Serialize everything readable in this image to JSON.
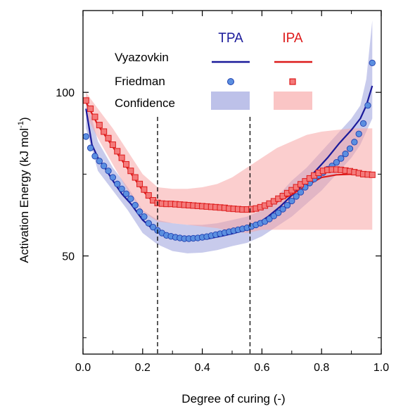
{
  "chart_data": {
    "type": "line",
    "xlabel": "Degree of curing (-)",
    "ylabel": "Activation Energy (kJ mol",
    "ylabel_sup": "-1",
    "ylabel_close": ")",
    "xlim": [
      0.0,
      1.0
    ],
    "ylim": [
      20,
      125
    ],
    "xticks": [
      0.0,
      0.2,
      0.4,
      0.6,
      0.8,
      1.0
    ],
    "xtick_labels": [
      "0.0",
      "0.2",
      "0.4",
      "0.6",
      "0.8",
      "1.0"
    ],
    "yticks": [
      50,
      100
    ],
    "ytick_labels": [
      "50",
      "100"
    ],
    "vlines": [
      0.25,
      0.56
    ],
    "legend": {
      "col_headers": [
        "TPA",
        "IPA"
      ],
      "row_labels": [
        "Vyazovkin",
        "Friedman",
        "Confidence"
      ]
    },
    "colors": {
      "tpa_line": "#1a1a9a",
      "tpa_marker": "#5b8fe0",
      "tpa_marker_edge": "#1f3fb0",
      "tpa_band": "#9aa0dd",
      "ipa_line": "#dd1a1a",
      "ipa_marker": "#f47a7a",
      "ipa_marker_edge": "#dd1a1a",
      "ipa_band": "#f7a6a6"
    },
    "series": [
      {
        "name": "TPA",
        "kind": "Vyazovkin",
        "x": [
          0.01,
          0.03,
          0.05,
          0.08,
          0.1,
          0.13,
          0.16,
          0.2,
          0.23,
          0.26,
          0.3,
          0.34,
          0.38,
          0.42,
          0.46,
          0.5,
          0.54,
          0.58,
          0.62,
          0.66,
          0.7,
          0.74,
          0.78,
          0.82,
          0.86,
          0.9,
          0.93,
          0.95,
          0.97
        ],
        "y": [
          95,
          84,
          80,
          76,
          73,
          69,
          66,
          61,
          58.5,
          57,
          55.8,
          55.2,
          55,
          55.3,
          56,
          56.8,
          57.8,
          59.5,
          62,
          65,
          68.5,
          72,
          76,
          80,
          84.5,
          88.5,
          92,
          96,
          102
        ]
      },
      {
        "name": "TPA",
        "kind": "Friedman",
        "x": [
          0.01,
          0.025,
          0.04,
          0.055,
          0.07,
          0.085,
          0.1,
          0.115,
          0.13,
          0.145,
          0.16,
          0.175,
          0.19,
          0.205,
          0.22,
          0.235,
          0.25,
          0.265,
          0.28,
          0.295,
          0.31,
          0.325,
          0.34,
          0.355,
          0.37,
          0.385,
          0.4,
          0.415,
          0.43,
          0.445,
          0.46,
          0.475,
          0.49,
          0.505,
          0.52,
          0.535,
          0.55,
          0.565,
          0.58,
          0.595,
          0.61,
          0.625,
          0.64,
          0.655,
          0.67,
          0.685,
          0.7,
          0.715,
          0.73,
          0.745,
          0.76,
          0.775,
          0.79,
          0.805,
          0.82,
          0.835,
          0.85,
          0.865,
          0.88,
          0.895,
          0.91,
          0.925,
          0.94,
          0.955,
          0.97
        ],
        "y": [
          86.5,
          83,
          80.5,
          79,
          77.5,
          76,
          74,
          72,
          70.5,
          69,
          67.5,
          65.5,
          63.5,
          62,
          60,
          58.8,
          57.8,
          57,
          56.3,
          56,
          55.7,
          55.5,
          55.3,
          55.3,
          55.4,
          55.5,
          55.7,
          55.9,
          56.2,
          56.5,
          56.8,
          57.1,
          57.4,
          57.7,
          58,
          58.3,
          58.6,
          59,
          59.5,
          60,
          60.5,
          61.3,
          62.2,
          63.2,
          64.3,
          65.5,
          66.8,
          68.2,
          69.5,
          71,
          72.3,
          73.5,
          74.6,
          75.5,
          76.5,
          77.5,
          78.6,
          79.8,
          81.2,
          82.8,
          84.8,
          87.3,
          90.5,
          96,
          109
        ]
      },
      {
        "name": "IPA",
        "kind": "Vyazovkin",
        "x": [
          0.01,
          0.03,
          0.05,
          0.08,
          0.11,
          0.14,
          0.17,
          0.2,
          0.23,
          0.25,
          0.3,
          0.35,
          0.4,
          0.45,
          0.5,
          0.55,
          0.6,
          0.65,
          0.7,
          0.75,
          0.8,
          0.85,
          0.9,
          0.95,
          0.97
        ],
        "y": [
          97,
          93.5,
          90,
          86,
          82,
          78,
          74,
          70,
          67,
          65.8,
          65.5,
          65.2,
          64.8,
          64.3,
          63.8,
          64,
          64.8,
          66.5,
          68.8,
          71.5,
          74,
          74.8,
          75,
          74.8,
          74.8
        ]
      },
      {
        "name": "IPA",
        "kind": "Friedman",
        "x": [
          0.01,
          0.025,
          0.04,
          0.055,
          0.07,
          0.085,
          0.1,
          0.115,
          0.13,
          0.145,
          0.16,
          0.175,
          0.19,
          0.205,
          0.22,
          0.235,
          0.25,
          0.265,
          0.28,
          0.295,
          0.31,
          0.325,
          0.34,
          0.355,
          0.37,
          0.385,
          0.4,
          0.415,
          0.43,
          0.445,
          0.46,
          0.475,
          0.49,
          0.505,
          0.52,
          0.535,
          0.55,
          0.565,
          0.58,
          0.595,
          0.61,
          0.625,
          0.64,
          0.655,
          0.67,
          0.685,
          0.7,
          0.715,
          0.73,
          0.745,
          0.76,
          0.775,
          0.79,
          0.805,
          0.82,
          0.835,
          0.85,
          0.865,
          0.88,
          0.895,
          0.91,
          0.925,
          0.94,
          0.955,
          0.97
        ],
        "y": [
          97.5,
          95,
          92.5,
          90,
          88,
          86,
          84,
          82,
          80,
          78,
          76,
          74,
          72,
          70.3,
          68.5,
          67,
          66.2,
          66,
          65.9,
          65.9,
          65.8,
          65.7,
          65.6,
          65.5,
          65.4,
          65.3,
          65.2,
          65.1,
          65,
          64.9,
          64.8,
          64.7,
          64.5,
          64.4,
          64.3,
          64.2,
          64.2,
          64.3,
          64.5,
          64.9,
          65.4,
          66,
          66.7,
          67.5,
          68.3,
          69.2,
          70.1,
          71,
          71.9,
          72.8,
          73.7,
          74.6,
          75.4,
          76,
          76.3,
          76.4,
          76.4,
          76.3,
          76.1,
          75.9,
          75.6,
          75.3,
          75,
          74.9,
          74.8
        ]
      }
    ],
    "bands": [
      {
        "name": "TPA",
        "x": [
          0.01,
          0.05,
          0.1,
          0.15,
          0.2,
          0.25,
          0.3,
          0.35,
          0.4,
          0.45,
          0.5,
          0.55,
          0.6,
          0.65,
          0.7,
          0.75,
          0.8,
          0.85,
          0.9,
          0.93,
          0.95,
          0.97
        ],
        "lower": [
          89,
          76,
          70,
          64,
          57,
          53.5,
          51.5,
          50.8,
          51,
          51.8,
          53,
          54,
          56,
          59,
          62,
          66,
          70,
          75,
          80,
          84,
          88,
          92
        ],
        "upper": [
          99,
          85,
          77,
          71,
          64,
          61,
          60,
          59.5,
          59.5,
          60,
          61,
          62,
          64,
          68,
          73,
          77,
          82,
          87,
          92,
          96,
          104,
          122
        ]
      },
      {
        "name": "IPA",
        "x": [
          0.01,
          0.05,
          0.1,
          0.15,
          0.2,
          0.25,
          0.3,
          0.35,
          0.4,
          0.45,
          0.5,
          0.55,
          0.6,
          0.65,
          0.7,
          0.75,
          0.8,
          0.85,
          0.9,
          0.95,
          0.97
        ],
        "lower": [
          93,
          86,
          78,
          70,
          63.5,
          60.5,
          60,
          59.5,
          59,
          58.5,
          57.5,
          57,
          58,
          58,
          58,
          58,
          58,
          58,
          58,
          58,
          58
        ],
        "upper": [
          100,
          95,
          89,
          82,
          75,
          71,
          70.5,
          70.5,
          71,
          72,
          74,
          77,
          80,
          83,
          85,
          87,
          88,
          88.5,
          89,
          89,
          89
        ]
      }
    ]
  }
}
